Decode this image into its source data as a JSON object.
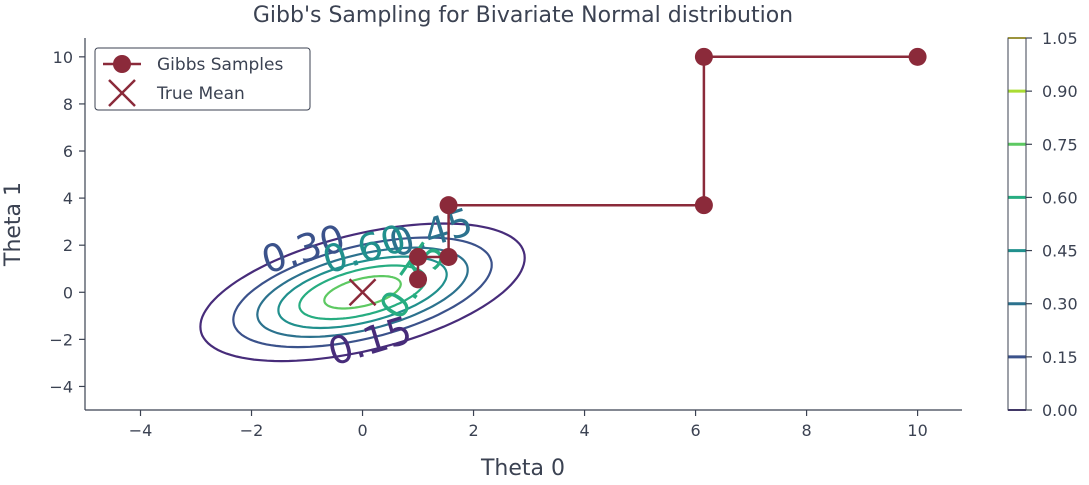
{
  "chart_data": {
    "type": "line",
    "title": "Gibb's Sampling for Bivariate Normal distribution",
    "xlabel": "Theta 0",
    "ylabel": "Theta 1",
    "xlim": [
      -5,
      10.8
    ],
    "ylim": [
      -5,
      10.8
    ],
    "xticks": [
      -4,
      -2,
      0,
      2,
      4,
      6,
      8,
      10
    ],
    "yticks": [
      -4,
      -2,
      0,
      2,
      4,
      6,
      8,
      10
    ],
    "xtick_labels": [
      "−4",
      "−2",
      "0",
      "2",
      "4",
      "6",
      "8",
      "10"
    ],
    "ytick_labels": [
      "−4",
      "−2",
      "0",
      "2",
      "4",
      "6",
      "8",
      "10"
    ],
    "grid": false,
    "legend_position": "top-left",
    "series": [
      {
        "name": "Gibbs Samples",
        "color": "#8b2a3a",
        "marker": "circle",
        "x": [
          10,
          6.15,
          6.15,
          1.55,
          1.55,
          1.0,
          1.0
        ],
        "y": [
          10,
          10,
          3.7,
          3.7,
          1.5,
          1.5,
          0.55
        ]
      },
      {
        "name": "True Mean",
        "color": "#8b2a3a",
        "marker": "x",
        "x": [
          0
        ],
        "y": [
          0
        ]
      }
    ],
    "contours": {
      "levels": [
        0.15,
        0.3,
        0.45,
        0.6,
        0.75,
        0.9
      ],
      "colors": [
        "#472c7a",
        "#3b528b",
        "#2c728e",
        "#21908d",
        "#27ad81",
        "#5dc962",
        "#aadc32"
      ],
      "inline_labels": [
        {
          "text": "0.15",
          "x": 0.2,
          "y": -2.6,
          "rotation": -17,
          "color": "#472c7a"
        },
        {
          "text": "0.30",
          "x": -1.0,
          "y": 1.3,
          "rotation": -17,
          "color": "#3b528b"
        },
        {
          "text": "0.45",
          "x": 1.3,
          "y": 2.0,
          "rotation": -17,
          "color": "#2c728e"
        },
        {
          "text": "0.60",
          "x": 0.1,
          "y": 1.3,
          "rotation": -17,
          "color": "#21908d"
        },
        {
          "text": "0.75",
          "x": 1.1,
          "y": 0.2,
          "rotation": -55,
          "color": "#27ad81"
        }
      ]
    },
    "colorbar": {
      "ticks": [
        "0.00",
        "0.15",
        "0.30",
        "0.45",
        "0.60",
        "0.75",
        "0.90",
        "1.05"
      ],
      "colors": [
        "#440154",
        "#472c7a",
        "#3b528b",
        "#2c728e",
        "#21908d",
        "#27ad81",
        "#5dc962",
        "#aadc32",
        "#fde725"
      ]
    }
  }
}
